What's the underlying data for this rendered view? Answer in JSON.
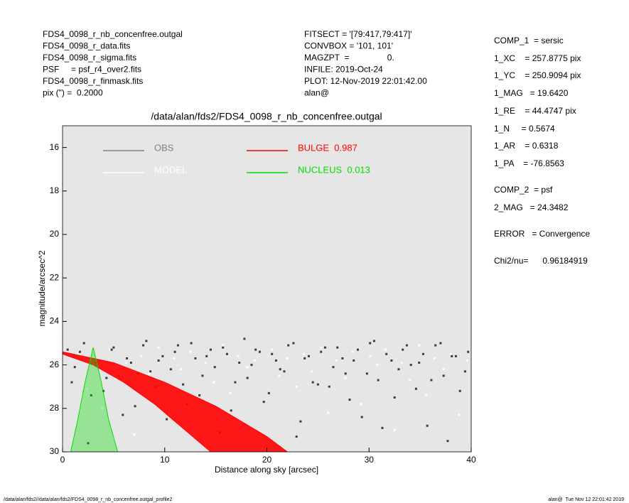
{
  "header": {
    "left": [
      "FDS4_0098_r_nb_concenfree.outgal",
      "FDS4_0098_r_data.fits",
      "FDS4_0098_r_sigma.fits",
      "PSF     = psf_r4_over2.fits",
      "FDS4_0098_r_finmask.fits",
      "pix (\") =  0.2000"
    ],
    "middle": [
      "FITSECT = '[79:417,79:417]'",
      "CONVBOX = '101, 101'",
      "MAGZPT  =                0.",
      "INFILE: 2019-Oct-24",
      "PLOT: 12-Nov-2019 22:01:42.00",
      "alan@"
    ],
    "right": [
      "COMP_1  = sersic",
      "1_XC    = 257.8775 pix",
      "1_YC    = 250.9094 pix",
      "1_MAG   = 19.6420",
      "1_RE    = 44.4747 pix",
      "1_N     = 0.5674",
      "1_AR    = 0.6318",
      "1_PA    = -76.8563",
      "COMP_2  = psf",
      "2_MAG   = 24.3482",
      "ERROR   = Convergence",
      "Chi2/nu=      0.96184919"
    ]
  },
  "footer": {
    "left": "/data/alan/fds2//data/alan/fds2/FDS4_0098_r_nb_concenfree.outgal_profile2",
    "right": "alan@  Tue Nov 12 22:01:42 2019"
  },
  "chart_data": {
    "type": "scatter",
    "title": "/data/alan/fds2/FDS4_0098_r_nb_concenfree.outgal",
    "xlabel": "Distance along sky [arcsec]",
    "ylabel": "magnitude/arcsec^2",
    "xlim": [
      0,
      40
    ],
    "xticks": [
      0,
      10,
      20,
      30,
      40
    ],
    "ylim": [
      15,
      30
    ],
    "yticks": [
      16,
      18,
      20,
      22,
      24,
      26,
      28,
      30
    ],
    "y_inverted": true,
    "grid": false,
    "background": "#e6e6e6",
    "series": [
      {
        "name": "OBS",
        "color": "#808080",
        "point_color": "#3c3c3c",
        "kind": "points",
        "x": [
          0.5,
          1.2,
          2.1,
          2.8,
          3.6,
          4.3,
          5.0,
          5.9,
          6.7,
          7.4,
          8.2,
          9.1,
          9.8,
          10.6,
          11.3,
          12.2,
          13.0,
          13.7,
          14.5,
          15.4,
          16.1,
          16.9,
          17.8,
          18.5,
          19.3,
          20.2,
          20.9,
          21.7,
          22.6,
          23.3,
          24.1,
          25.0,
          25.7,
          26.5,
          27.4,
          28.1,
          28.9,
          29.8,
          30.5,
          31.3,
          32.2,
          32.9,
          33.7,
          34.6,
          35.3,
          36.1,
          37.0,
          37.7,
          38.5,
          39.4,
          0.9,
          1.7,
          2.5,
          3.3,
          4.0,
          4.8,
          5.5,
          6.3,
          7.1,
          7.9,
          8.6,
          9.4,
          10.2,
          11.0,
          11.8,
          12.6,
          13.4,
          14.1,
          14.9,
          15.7,
          16.5,
          17.3,
          18.1,
          18.9,
          19.7,
          20.5,
          21.3,
          22.1,
          22.9,
          23.7,
          24.5,
          25.3,
          26.1,
          26.9,
          27.7,
          28.5,
          29.3,
          30.1,
          30.9,
          31.7,
          32.5,
          33.3,
          34.1,
          34.9,
          35.7,
          36.5,
          37.3,
          38.1,
          38.9,
          39.7
        ],
        "values": [
          25.3,
          26.1,
          25.0,
          27.4,
          25.8,
          26.6,
          25.2,
          28.3,
          25.9,
          26.4,
          24.9,
          27.0,
          25.6,
          26.2,
          25.1,
          27.8,
          25.7,
          26.5,
          25.3,
          29.1,
          25.5,
          26.8,
          24.8,
          26.0,
          25.4,
          27.3,
          25.8,
          26.3,
          25.0,
          28.6,
          25.6,
          26.9,
          25.2,
          26.1,
          25.7,
          27.6,
          25.3,
          26.4,
          24.9,
          28.9,
          25.8,
          26.2,
          25.1,
          27.1,
          25.5,
          26.7,
          25.0,
          29.5,
          25.6,
          26.3,
          26.8,
          25.4,
          29.6,
          25.9,
          27.2,
          25.3,
          26.5,
          25.7,
          27.9,
          25.1,
          26.3,
          25.8,
          28.5,
          25.4,
          26.9,
          25.0,
          27.4,
          25.6,
          26.1,
          25.2,
          28.1,
          25.9,
          26.6,
          25.3,
          27.7,
          25.5,
          26.2,
          25.1,
          29.3,
          25.7,
          26.8,
          25.4,
          27.0,
          25.2,
          26.4,
          25.8,
          28.4,
          25.0,
          26.7,
          25.5,
          27.5,
          25.3,
          26.0,
          25.9,
          28.8,
          25.1,
          26.5,
          25.6,
          27.2,
          25.4
        ]
      },
      {
        "name": "MODEL",
        "color": "#ffffff",
        "point_color": "#ffffff",
        "kind": "points",
        "x": [
          0.2,
          1.5,
          2.4,
          3.1,
          3.9,
          4.6,
          5.3,
          6.2,
          7.0,
          7.7,
          8.5,
          9.4,
          10.1,
          10.9,
          11.6,
          12.5,
          13.3,
          14.0,
          14.8,
          15.7,
          16.4,
          17.2,
          18.1,
          18.8,
          19.6,
          20.5,
          21.2,
          22.0,
          22.9,
          23.6,
          24.4,
          25.3,
          26.0,
          26.8,
          27.7,
          28.4,
          29.2,
          30.1,
          30.8,
          31.6,
          32.5,
          33.2,
          34.0,
          34.9,
          35.6,
          36.4,
          37.3,
          38.0,
          38.8,
          39.6
        ],
        "values": [
          26.0,
          25.5,
          27.1,
          25.8,
          28.0,
          25.3,
          26.6,
          25.9,
          29.2,
          25.6,
          26.4,
          25.2,
          27.5,
          25.7,
          26.2,
          25.4,
          28.7,
          25.9,
          26.8,
          25.1,
          27.3,
          25.6,
          26.1,
          25.8,
          29.8,
          25.3,
          26.5,
          25.7,
          27.0,
          25.5,
          26.3,
          25.2,
          28.2,
          25.8,
          26.6,
          25.4,
          27.8,
          25.6,
          26.0,
          25.3,
          29.0,
          25.9,
          26.7,
          25.1,
          27.4,
          25.7,
          26.2,
          25.5,
          28.3,
          25.8
        ]
      },
      {
        "name": "BULGE  0.987",
        "color": "#ff0000",
        "kind": "area",
        "x": [
          0,
          5,
          10,
          15,
          20,
          22,
          14.5,
          12,
          9,
          6,
          3,
          0
        ],
        "values": [
          25.4,
          25.9,
          26.8,
          27.9,
          29.3,
          30,
          30,
          29.0,
          27.8,
          26.8,
          26.0,
          25.5
        ]
      },
      {
        "name": "NUCLEUS  0.013",
        "color": "#00dd00",
        "kind": "area",
        "x": [
          0.8,
          1.5,
          2.2,
          3,
          3.8,
          4.5,
          5.4
        ],
        "values": [
          30,
          28.5,
          26.8,
          25.2,
          26.8,
          28.5,
          30
        ]
      }
    ]
  }
}
